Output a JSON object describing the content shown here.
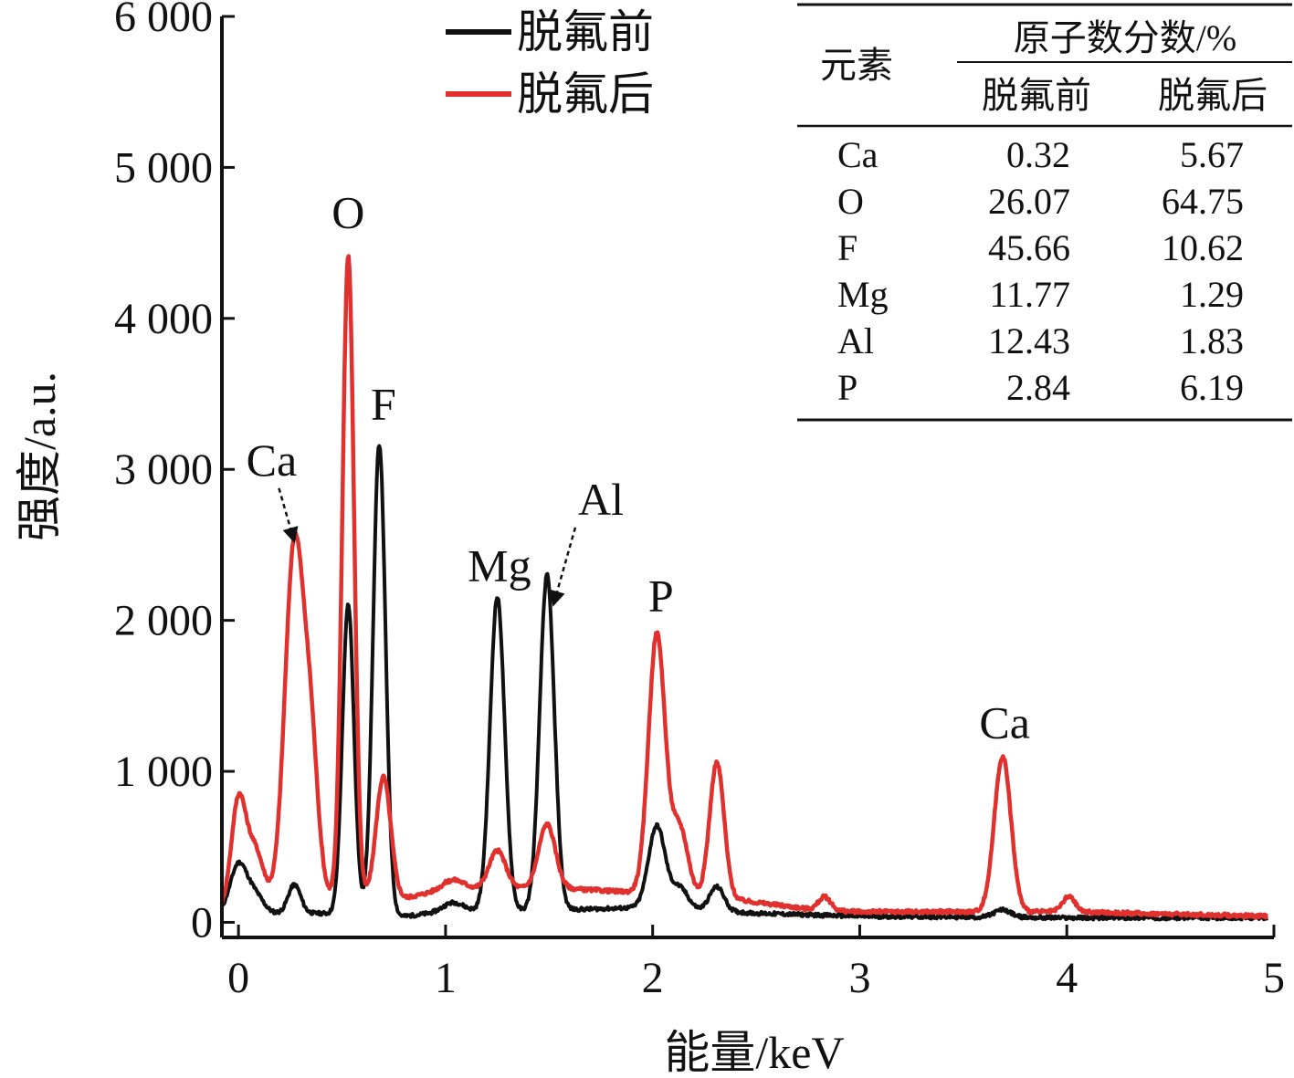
{
  "chart_data": {
    "type": "line",
    "xlabel": "能量/keV",
    "ylabel": "强度/a.u.",
    "xlim": [
      -0.08,
      5
    ],
    "ylim": [
      -100,
      6000
    ],
    "xticks": [
      0,
      1,
      2,
      3,
      4,
      5
    ],
    "xtick_labels": [
      "0",
      "1",
      "2",
      "3",
      "4",
      "5"
    ],
    "yticks": [
      0,
      1000,
      2000,
      3000,
      4000,
      5000,
      6000
    ],
    "ytick_labels": [
      "0",
      "1 000",
      "2 000",
      "3 000",
      "4 000",
      "5 000",
      "6 000"
    ],
    "grid": false,
    "legend_position": "top-center",
    "series": [
      {
        "name": "脱氟前",
        "color": "#111111",
        "baseline": [
          [
            -0.08,
            60
          ],
          [
            0.4,
            60
          ],
          [
            0.8,
            40
          ],
          [
            1.0,
            70
          ],
          [
            1.5,
            80
          ],
          [
            2.0,
            100
          ],
          [
            2.5,
            60
          ],
          [
            3.0,
            40
          ],
          [
            4.0,
            30
          ],
          [
            5.0,
            30
          ]
        ],
        "peaks": [
          {
            "x": 0.0,
            "h": 320,
            "w": 0.04
          },
          {
            "x": 0.08,
            "h": 120,
            "w": 0.04
          },
          {
            "x": 0.27,
            "h": 190,
            "w": 0.03
          },
          {
            "x": 0.53,
            "h": 2050,
            "w": 0.028
          },
          {
            "x": 0.68,
            "h": 3120,
            "w": 0.03
          },
          {
            "x": 1.04,
            "h": 60,
            "w": 0.05
          },
          {
            "x": 1.25,
            "h": 2080,
            "w": 0.035
          },
          {
            "x": 1.49,
            "h": 2220,
            "w": 0.035
          },
          {
            "x": 2.02,
            "h": 540,
            "w": 0.04
          },
          {
            "x": 2.13,
            "h": 140,
            "w": 0.04
          },
          {
            "x": 2.31,
            "h": 160,
            "w": 0.035
          },
          {
            "x": 3.69,
            "h": 50,
            "w": 0.04
          }
        ]
      },
      {
        "name": "脱氟后",
        "color": "#e0312f",
        "baseline": [
          [
            -0.08,
            80
          ],
          [
            0.3,
            180
          ],
          [
            0.8,
            160
          ],
          [
            1.0,
            220
          ],
          [
            1.5,
            230
          ],
          [
            1.9,
            200
          ],
          [
            2.4,
            150
          ],
          [
            2.8,
            80
          ],
          [
            3.0,
            70
          ],
          [
            4.0,
            70
          ],
          [
            5.0,
            40
          ]
        ],
        "peaks": [
          {
            "x": 0.0,
            "h": 700,
            "w": 0.035
          },
          {
            "x": 0.08,
            "h": 350,
            "w": 0.04
          },
          {
            "x": 0.27,
            "h": 2330,
            "w": 0.045
          },
          {
            "x": 0.35,
            "h": 900,
            "w": 0.035
          },
          {
            "x": 0.53,
            "h": 4250,
            "w": 0.028
          },
          {
            "x": 0.7,
            "h": 800,
            "w": 0.035
          },
          {
            "x": 1.04,
            "h": 60,
            "w": 0.05
          },
          {
            "x": 1.25,
            "h": 250,
            "w": 0.04
          },
          {
            "x": 1.49,
            "h": 420,
            "w": 0.04
          },
          {
            "x": 2.02,
            "h": 1720,
            "w": 0.04
          },
          {
            "x": 2.13,
            "h": 450,
            "w": 0.04
          },
          {
            "x": 2.31,
            "h": 900,
            "w": 0.035
          },
          {
            "x": 2.83,
            "h": 90,
            "w": 0.03
          },
          {
            "x": 3.69,
            "h": 1030,
            "w": 0.04
          },
          {
            "x": 4.01,
            "h": 100,
            "w": 0.03
          }
        ]
      }
    ],
    "annotations": [
      {
        "text": "Ca",
        "x": 0.16,
        "y": 2960,
        "arrow_to": [
          0.27,
          2520
        ]
      },
      {
        "text": "O",
        "x": 0.53,
        "y": 4600
      },
      {
        "text": "F",
        "x": 0.7,
        "y": 3330
      },
      {
        "text": "Mg",
        "x": 1.26,
        "y": 2260
      },
      {
        "text": "Al",
        "x": 1.75,
        "y": 2700,
        "arrow_to": [
          1.52,
          2100
        ]
      },
      {
        "text": "P",
        "x": 2.04,
        "y": 2060
      },
      {
        "text": "Ca",
        "x": 3.7,
        "y": 1220
      }
    ]
  },
  "inset_table": {
    "headers": {
      "element": "元素",
      "group": "原子数分数/%",
      "before": "脱氟前",
      "after": "脱氟后"
    },
    "rows": [
      {
        "element": "Ca",
        "before": "0.32",
        "after": "5.67"
      },
      {
        "element": "O",
        "before": "26.07",
        "after": "64.75"
      },
      {
        "element": "F",
        "before": "45.66",
        "after": "10.62"
      },
      {
        "element": "Mg",
        "before": "11.77",
        "after": "1.29"
      },
      {
        "element": "Al",
        "before": "12.43",
        "after": "1.83"
      },
      {
        "element": "P",
        "before": "2.84",
        "after": "6.19"
      }
    ]
  }
}
